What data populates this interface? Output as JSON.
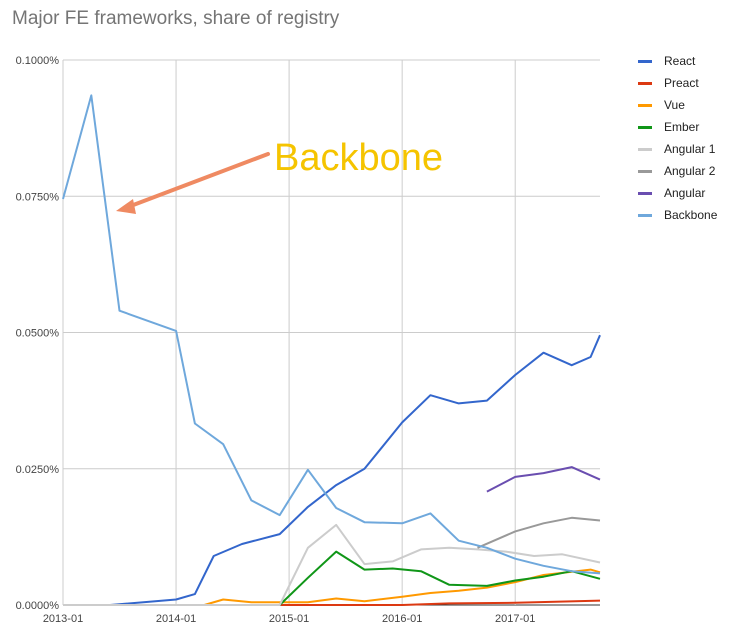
{
  "chart_data": {
    "type": "line",
    "title": "Major FE frameworks, share of registry",
    "xlabel": "",
    "ylabel": "",
    "xlim": [
      "2013-01",
      "2017-10"
    ],
    "ylim": [
      0,
      0.1
    ],
    "x_ticks": [
      "2013-01",
      "2014-01",
      "2015-01",
      "2016-01",
      "2017-01"
    ],
    "y_ticks": [
      "0.0000%",
      "0.0250%",
      "0.0500%",
      "0.0750%",
      "0.1000%"
    ],
    "grid": true,
    "legend_position": "right",
    "annotation": {
      "text": "Backbone",
      "color": "#f5c400",
      "arrow_color": "#ef8a62"
    },
    "series": [
      {
        "name": "React",
        "color": "#3366cc",
        "points": [
          [
            "2013-01",
            0
          ],
          [
            "2013-06",
            0
          ],
          [
            "2014-01",
            0.001
          ],
          [
            "2014-03",
            0.002
          ],
          [
            "2014-05",
            0.009
          ],
          [
            "2014-08",
            0.0112
          ],
          [
            "2014-12",
            0.013
          ],
          [
            "2015-03",
            0.018
          ],
          [
            "2015-06",
            0.022
          ],
          [
            "2015-09",
            0.025
          ],
          [
            "2016-01",
            0.0335
          ],
          [
            "2016-04",
            0.0385
          ],
          [
            "2016-07",
            0.037
          ],
          [
            "2016-10",
            0.0375
          ],
          [
            "2017-01",
            0.0422
          ],
          [
            "2017-04",
            0.0463
          ],
          [
            "2017-07",
            0.044
          ],
          [
            "2017-09",
            0.0455
          ],
          [
            "2017-10",
            0.0495
          ]
        ]
      },
      {
        "name": "Preact",
        "color": "#dc3912",
        "points": [
          [
            "2013-01",
            0
          ],
          [
            "2016-01",
            0
          ],
          [
            "2016-06",
            0.0003
          ],
          [
            "2017-01",
            0.0004
          ],
          [
            "2017-10",
            0.0008
          ]
        ]
      },
      {
        "name": "Vue",
        "color": "#ff9900",
        "points": [
          [
            "2013-01",
            0
          ],
          [
            "2014-01",
            0
          ],
          [
            "2014-04",
            0
          ],
          [
            "2014-06",
            0.001
          ],
          [
            "2014-09",
            0.0005
          ],
          [
            "2015-03",
            0.0005
          ],
          [
            "2015-06",
            0.0012
          ],
          [
            "2015-09",
            0.0007
          ],
          [
            "2016-01",
            0.0015
          ],
          [
            "2016-04",
            0.0022
          ],
          [
            "2016-07",
            0.0026
          ],
          [
            "2016-10",
            0.0032
          ],
          [
            "2017-01",
            0.0042
          ],
          [
            "2017-04",
            0.0055
          ],
          [
            "2017-09",
            0.0065
          ],
          [
            "2017-10",
            0.006
          ]
        ]
      },
      {
        "name": "Ember",
        "color": "#109618",
        "points": [
          [
            "2013-01",
            0
          ],
          [
            "2014-12",
            0
          ],
          [
            "2015-03",
            0.005
          ],
          [
            "2015-06",
            0.0098
          ],
          [
            "2015-09",
            0.0065
          ],
          [
            "2015-12",
            0.0067
          ],
          [
            "2016-03",
            0.0062
          ],
          [
            "2016-06",
            0.0037
          ],
          [
            "2016-10",
            0.0035
          ],
          [
            "2017-01",
            0.0045
          ],
          [
            "2017-04",
            0.0052
          ],
          [
            "2017-07",
            0.0062
          ],
          [
            "2017-10",
            0.0048
          ]
        ]
      },
      {
        "name": "Angular 1",
        "color": "#cccccc",
        "points": [
          [
            "2013-01",
            0
          ],
          [
            "2014-12",
            0
          ],
          [
            "2015-03",
            0.0105
          ],
          [
            "2015-06",
            0.0147
          ],
          [
            "2015-09",
            0.0075
          ],
          [
            "2015-12",
            0.008
          ],
          [
            "2016-03",
            0.0102
          ],
          [
            "2016-06",
            0.0105
          ],
          [
            "2016-09",
            0.0102
          ],
          [
            "2016-12",
            0.0098
          ],
          [
            "2017-03",
            0.009
          ],
          [
            "2017-06",
            0.0093
          ],
          [
            "2017-10",
            0.0078
          ]
        ]
      },
      {
        "name": "Angular 2",
        "color": "#999999",
        "points": [
          [
            "2016-09",
            0.0105
          ],
          [
            "2017-01",
            0.0135
          ],
          [
            "2017-04",
            0.015
          ],
          [
            "2017-07",
            0.016
          ],
          [
            "2017-10",
            0.0155
          ]
        ]
      },
      {
        "name": "Angular",
        "color": "#6a4eb0",
        "points": [
          [
            "2016-10",
            0.0208
          ],
          [
            "2017-01",
            0.0235
          ],
          [
            "2017-04",
            0.0242
          ],
          [
            "2017-07",
            0.0253
          ],
          [
            "2017-10",
            0.023
          ]
        ]
      },
      {
        "name": "Backbone",
        "color": "#6fa8dc",
        "points": [
          [
            "2013-01",
            0.0745
          ],
          [
            "2013-04",
            0.0935
          ],
          [
            "2013-07",
            0.054
          ],
          [
            "2014-01",
            0.0503
          ],
          [
            "2014-03",
            0.0333
          ],
          [
            "2014-06",
            0.0295
          ],
          [
            "2014-09",
            0.0192
          ],
          [
            "2014-12",
            0.0165
          ],
          [
            "2015-03",
            0.0248
          ],
          [
            "2015-06",
            0.0178
          ],
          [
            "2015-09",
            0.0152
          ],
          [
            "2016-01",
            0.015
          ],
          [
            "2016-04",
            0.0168
          ],
          [
            "2016-07",
            0.0118
          ],
          [
            "2016-10",
            0.0105
          ],
          [
            "2017-01",
            0.0085
          ],
          [
            "2017-04",
            0.0072
          ],
          [
            "2017-07",
            0.0062
          ],
          [
            "2017-10",
            0.0058
          ]
        ]
      }
    ]
  }
}
